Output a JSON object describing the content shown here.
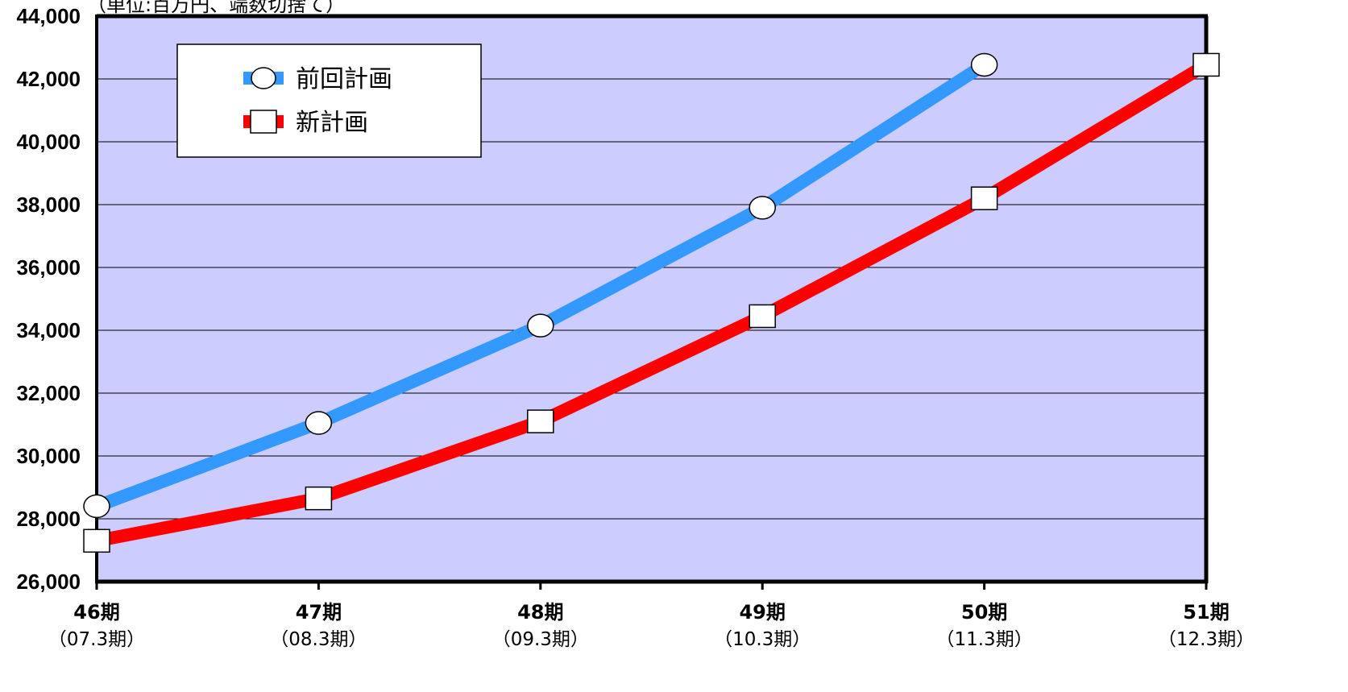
{
  "chart_data": {
    "type": "line",
    "title": "",
    "unit_note": "（単位:百万円、端数切捨て）",
    "xlabel": "",
    "ylabel": "",
    "categories": [
      {
        "period": "46期",
        "fiscal": "（07.3期）"
      },
      {
        "period": "47期",
        "fiscal": "（08.3期）"
      },
      {
        "period": "48期",
        "fiscal": "（09.3期）"
      },
      {
        "period": "49期",
        "fiscal": "（10.3期）"
      },
      {
        "period": "50期",
        "fiscal": "（11.3期）"
      },
      {
        "period": "51期",
        "fiscal": "（12.3期）"
      }
    ],
    "ylim": [
      26000,
      44000
    ],
    "yticks": [
      26000,
      28000,
      30000,
      32000,
      34000,
      36000,
      38000,
      40000,
      42000,
      44000
    ],
    "ytick_labels": [
      "26,000",
      "28,000",
      "30,000",
      "32,000",
      "34,000",
      "36,000",
      "38,000",
      "40,000",
      "42,000",
      "44,000"
    ],
    "grid": true,
    "plot_background": "#ccccff",
    "legend_position": "top-left",
    "series": [
      {
        "name": "前回計画",
        "color": "#3399ff",
        "marker": "circle",
        "values": [
          28400,
          31050,
          34150,
          37900,
          42450,
          null
        ]
      },
      {
        "name": "新計画",
        "color": "#ff0000",
        "marker": "square",
        "values": [
          27300,
          28650,
          31100,
          34450,
          38200,
          42450
        ]
      }
    ]
  }
}
